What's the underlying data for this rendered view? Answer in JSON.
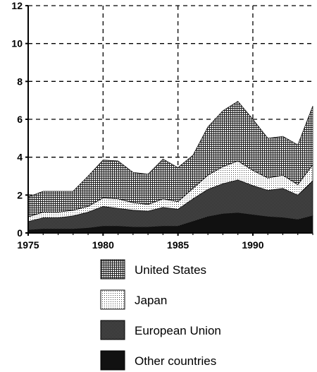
{
  "chart_data": {
    "type": "area",
    "stacked": true,
    "title": "",
    "xlabel": "",
    "ylabel": "",
    "xlim": [
      1975,
      1994
    ],
    "ylim": [
      0,
      12
    ],
    "grid": true,
    "legend_placement": "bottom",
    "x": [
      1975,
      1976,
      1977,
      1978,
      1979,
      1980,
      1981,
      1982,
      1983,
      1984,
      1985,
      1986,
      1987,
      1988,
      1989,
      1990,
      1991,
      1992,
      1993,
      1994
    ],
    "x_ticks": [
      1975,
      1980,
      1985,
      1990
    ],
    "y_ticks": [
      0,
      2,
      4,
      6,
      8,
      10,
      12
    ],
    "series": [
      {
        "name": "Other countries",
        "pattern": "solid",
        "color": "#111111",
        "values": [
          0.15,
          0.2,
          0.2,
          0.2,
          0.25,
          0.35,
          0.35,
          0.3,
          0.3,
          0.35,
          0.35,
          0.6,
          0.85,
          1.0,
          1.05,
          0.95,
          0.85,
          0.8,
          0.7,
          0.9
        ]
      },
      {
        "name": "European Union",
        "pattern": "dense-gray",
        "color": "#4a4a4a",
        "values": [
          0.45,
          0.6,
          0.6,
          0.7,
          0.85,
          1.05,
          0.95,
          0.9,
          0.85,
          1.0,
          0.9,
          1.2,
          1.45,
          1.6,
          1.75,
          1.55,
          1.4,
          1.55,
          1.3,
          1.85
        ]
      },
      {
        "name": "Japan",
        "pattern": "light-dots",
        "color": "#d8d8d8",
        "values": [
          0.25,
          0.3,
          0.3,
          0.3,
          0.3,
          0.45,
          0.5,
          0.4,
          0.35,
          0.45,
          0.4,
          0.55,
          0.75,
          0.9,
          1.0,
          0.8,
          0.65,
          0.7,
          0.55,
          0.85
        ]
      },
      {
        "name": "United States",
        "pattern": "grid-hatch",
        "color": "#8a8a8a",
        "values": [
          1.05,
          1.1,
          1.1,
          1.0,
          1.6,
          2.0,
          2.0,
          1.6,
          1.6,
          2.1,
          1.8,
          1.75,
          2.55,
          2.95,
          3.15,
          2.7,
          2.1,
          2.05,
          2.1,
          3.1
        ]
      }
    ]
  }
}
